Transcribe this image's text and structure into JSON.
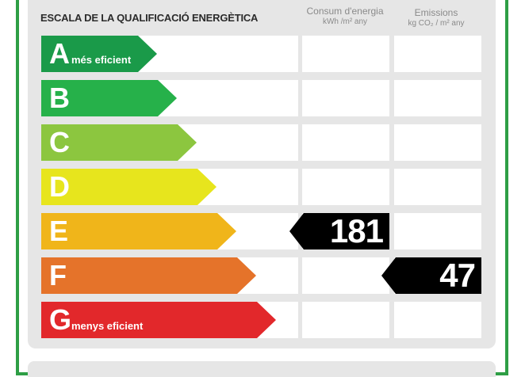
{
  "title": "ESCALA DE LA QUALIFICACIÓ ENERGÈTICA",
  "columns": {
    "consum": {
      "line1": "Consum d'energia",
      "line2": "kWh /m² any"
    },
    "emissions": {
      "line1": "Emissions",
      "line2": "kg CO₂ / m² any"
    }
  },
  "ratings": [
    {
      "letter": "A",
      "desc": "més eficient",
      "color": "#1a9a49"
    },
    {
      "letter": "B",
      "desc": "",
      "color": "#26b14a"
    },
    {
      "letter": "C",
      "desc": "",
      "color": "#8cc63f"
    },
    {
      "letter": "D",
      "desc": "",
      "color": "#e7e51d"
    },
    {
      "letter": "E",
      "desc": "",
      "color": "#f0b51a"
    },
    {
      "letter": "F",
      "desc": "",
      "color": "#e5732a"
    },
    {
      "letter": "G",
      "desc": "menys eficient",
      "color": "#e2282b"
    }
  ],
  "consum_value": "181",
  "emissions_value": "47",
  "consum_rating": "E",
  "emissions_rating": "F"
}
